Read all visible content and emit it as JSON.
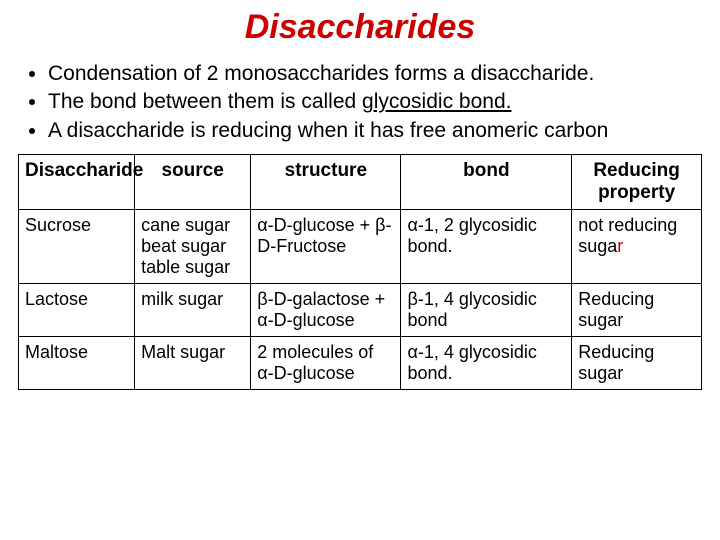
{
  "title": "Disaccharides",
  "bullets": {
    "b1": "Condensation of 2 monosaccharides forms a disaccharide.",
    "b2_before": "The bond between them is called ",
    "b2_underline": "glycosidic bond.",
    "b3": "A disaccharide is reducing when it has free anomeric carbon"
  },
  "table": {
    "headers": {
      "h1": "Disaccharide",
      "h2": "source",
      "h3": "structure",
      "h4": "bond",
      "h5": "Reducing property"
    },
    "rows": [
      {
        "name": "Sucrose",
        "source": "cane sugar beat sugar table sugar",
        "structure": "α-D-glucose  + β-D-Fructose",
        "bond": "α-1, 2 glycosidic bond.",
        "reducing_prefix": "not reducing suga",
        "reducing_r": "r"
      },
      {
        "name": "Lactose",
        "source": "milk sugar",
        "structure": "β-D-galactose +         α-D-glucose",
        "bond": "β-1, 4 glycosidic bond",
        "reducing_prefix": "Reducing sugar",
        "reducing_r": ""
      },
      {
        "name": "Maltose",
        "source": "Malt sugar",
        "structure": "2 molecules of α-D-glucose",
        "bond": "α-1, 4 glycosidic bond.",
        "reducing_prefix": "Reducing sugar",
        "reducing_r": ""
      }
    ]
  },
  "colors": {
    "title": "#cc0000",
    "text": "#000000",
    "border": "#000000",
    "background": "#ffffff",
    "accent_r": "#cc0000"
  },
  "fonts": {
    "title_size": 34,
    "bullet_size": 21,
    "table_header_size": 19,
    "table_cell_size": 18
  }
}
